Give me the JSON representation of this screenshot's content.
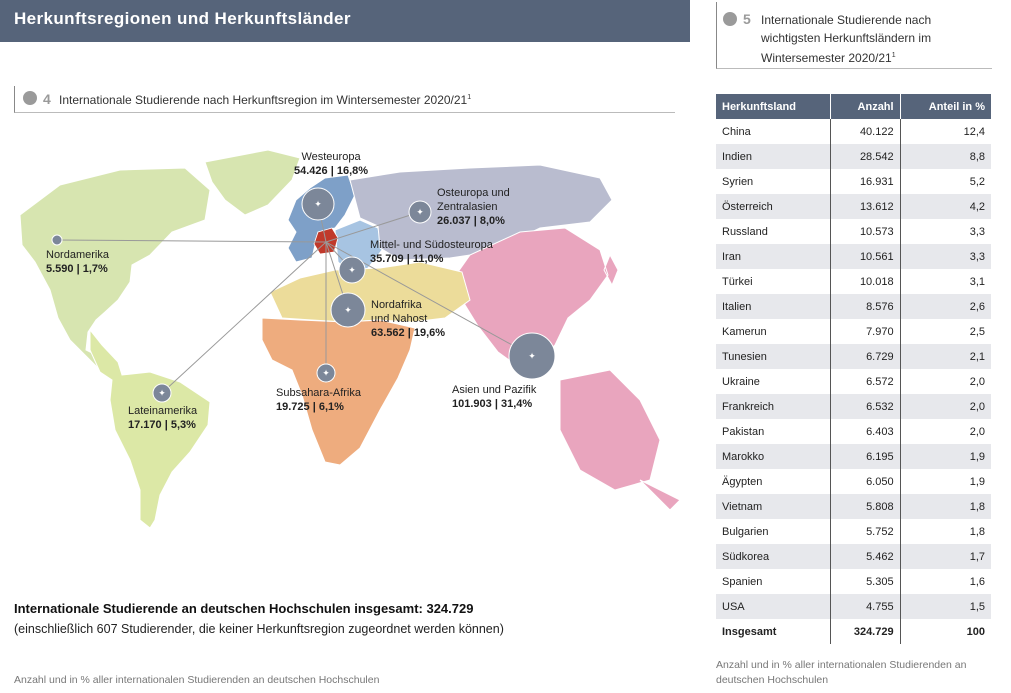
{
  "header": {
    "title": "Herkunftsregionen und Herkunftsländer"
  },
  "map_figure": {
    "number": "4",
    "title": "Internationale Studierende nach Herkunftsregion im Wintersemester 2020/21",
    "footnote_mark": "1"
  },
  "regions": [
    {
      "name": "Westeuropa",
      "value": "54.426 | 16,8%",
      "color": "#7ea0c8"
    },
    {
      "name": "Osteuropa und Zentralasien",
      "name_line1": "Osteuropa und",
      "name_line2": "Zentralasien",
      "value": "26.037 | 8,0%",
      "color": "#b9bccf"
    },
    {
      "name": "Mittel- und Südosteuropa",
      "value": "35.709 | 11,0%",
      "color": "#a7c4e2"
    },
    {
      "name": "Nordamerika",
      "value": "5.590 | 1,7%",
      "color": "#d7e5b0"
    },
    {
      "name": "Nordafrika und Nahost",
      "name_line1": "Nordafrika",
      "name_line2": "und Nahost",
      "value": "63.562 | 19,6%",
      "color": "#ecdc9a"
    },
    {
      "name": "Subsahara-Afrika",
      "value": "19.725 | 6,1%",
      "color": "#eeac7e"
    },
    {
      "name": "Lateinamerika",
      "value": "17.170 | 5,3%",
      "color": "#dce8a6"
    },
    {
      "name": "Asien und Pazifik",
      "value": "101.903 | 31,4%",
      "color": "#e9a5be"
    }
  ],
  "germany_color": "#c0392b",
  "bubble_color": "#7c8799",
  "summary": {
    "total_line": "Internationale Studierende an deutschen Hochschulen insgesamt: 324.729",
    "note": "(einschließlich 607 Studierender, die keiner Herkunftsregion zugeordnet werden können)"
  },
  "footnote_left": "Anzahl und in % aller internationalen Studierenden an deutschen Hochschulen",
  "table_figure": {
    "number": "5",
    "title": "Internationale Studierende nach wichtigsten Herkunftsländern im Wintersemester 2020/21",
    "footnote_mark": "1"
  },
  "table": {
    "headers": [
      "Herkunftsland",
      "Anzahl",
      "Anteil in %"
    ],
    "rows": [
      [
        "China",
        "40.122",
        "12,4"
      ],
      [
        "Indien",
        "28.542",
        "8,8"
      ],
      [
        "Syrien",
        "16.931",
        "5,2"
      ],
      [
        "Österreich",
        "13.612",
        "4,2"
      ],
      [
        "Russland",
        "10.573",
        "3,3"
      ],
      [
        "Iran",
        "10.561",
        "3,3"
      ],
      [
        "Türkei",
        "10.018",
        "3,1"
      ],
      [
        "Italien",
        "8.576",
        "2,6"
      ],
      [
        "Kamerun",
        "7.970",
        "2,5"
      ],
      [
        "Tunesien",
        "6.729",
        "2,1"
      ],
      [
        "Ukraine",
        "6.572",
        "2,0"
      ],
      [
        "Frankreich",
        "6.532",
        "2,0"
      ],
      [
        "Pakistan",
        "6.403",
        "2,0"
      ],
      [
        "Marokko",
        "6.195",
        "1,9"
      ],
      [
        "Ägypten",
        "6.050",
        "1,9"
      ],
      [
        "Vietnam",
        "5.808",
        "1,8"
      ],
      [
        "Bulgarien",
        "5.752",
        "1,8"
      ],
      [
        "Südkorea",
        "5.462",
        "1,7"
      ],
      [
        "Spanien",
        "5.305",
        "1,6"
      ],
      [
        "USA",
        "4.755",
        "1,5"
      ]
    ],
    "total": [
      "Insgesamt",
      "324.729",
      "100"
    ]
  },
  "footnote_right": "Anzahl und in % aller internationalen Studierenden an deutschen Hochschulen"
}
